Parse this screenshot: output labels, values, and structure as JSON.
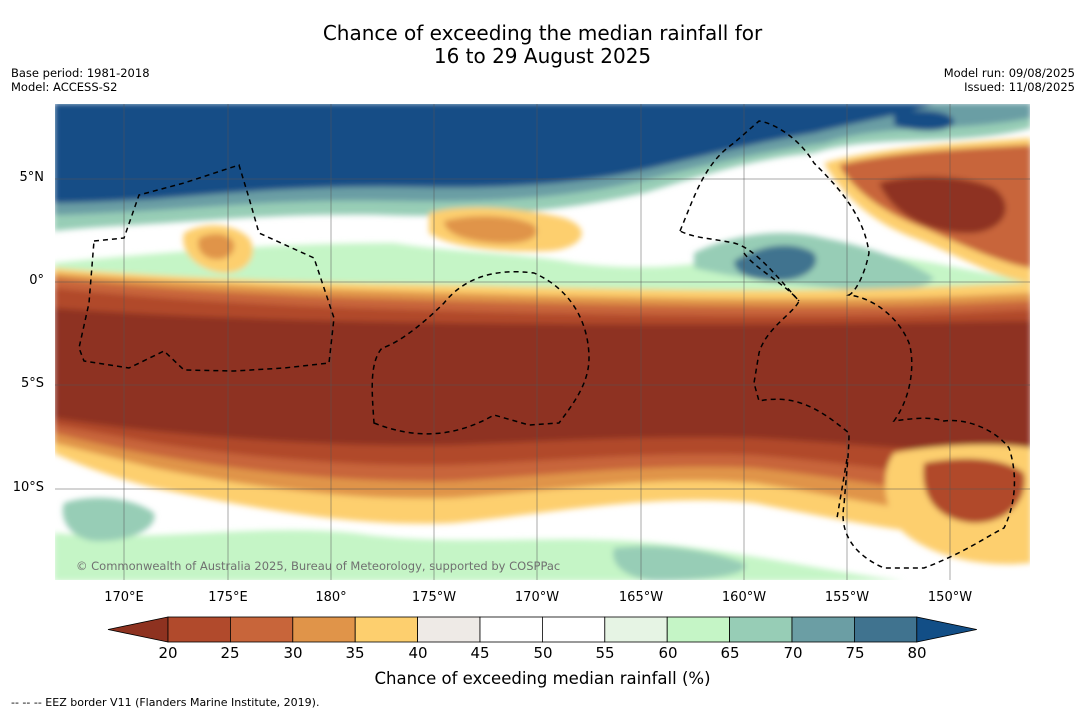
{
  "title": {
    "line1": "Chance of exceeding the median rainfall for",
    "line2": "16 to 29 August 2025"
  },
  "meta_left": {
    "base_period": "Base period: 1981-2018",
    "model": "Model: ACCESS-S2"
  },
  "meta_right": {
    "model_run": "Model run: 09/08/2025",
    "issued": "Issued: 11/08/2025"
  },
  "map": {
    "lat_labels": [
      "5°N",
      "0°",
      "5°S",
      "10°S"
    ],
    "lon_labels": [
      "170°E",
      "175°E",
      "180°",
      "175°W",
      "170°W",
      "165°W",
      "160°W",
      "155°W",
      "150°W"
    ],
    "lat_range": [
      -14.4,
      8.6
    ],
    "lon_range": [
      167.2,
      214.3
    ],
    "copyright": "© Commonwealth of Australia 2025, Bureau of Meteorology, supported by COSPPac"
  },
  "colorbar": {
    "ticks": [
      "20",
      "25",
      "30",
      "35",
      "40",
      "45",
      "50",
      "55",
      "60",
      "65",
      "70",
      "75",
      "80"
    ],
    "colors": [
      "#8e3220",
      "#b14a2c",
      "#c8653a",
      "#e09449",
      "#fdcf6e",
      "#eeeae6",
      "#ffffff",
      "#ffffff",
      "#e6f4e4",
      "#c5f5c6",
      "#97cdb6",
      "#6b9ea4",
      "#40738f",
      "#124e86"
    ],
    "label": "Chance of exceeding median rainfall (%)"
  },
  "eez_note": "--  --  -- EEZ border V11 (Flanders Marine Institute, 2019)."
}
